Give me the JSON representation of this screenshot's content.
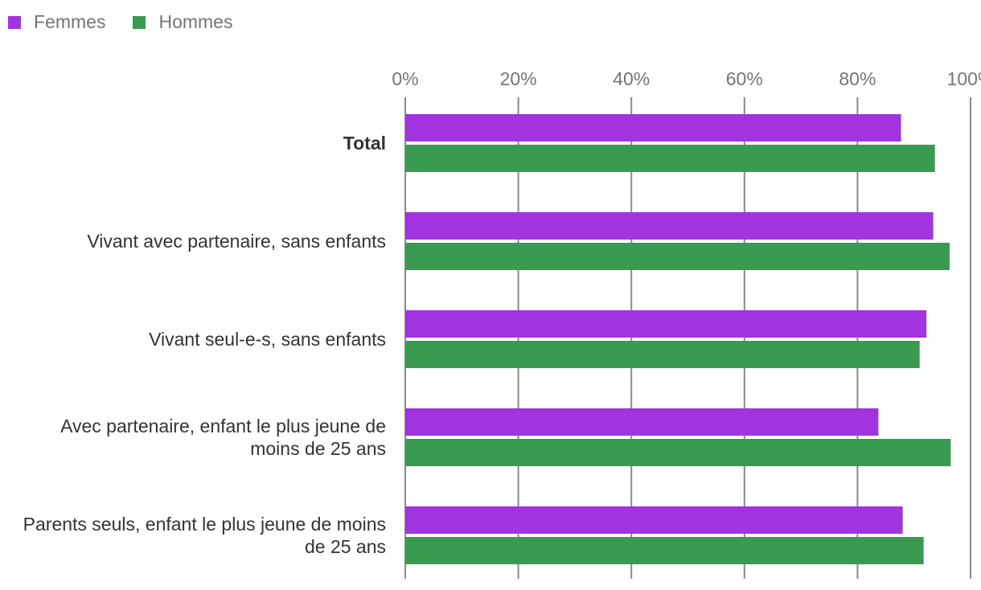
{
  "legend": {
    "items": [
      {
        "label": "Femmes",
        "color": "#A133E0"
      },
      {
        "label": "Hommes",
        "color": "#399B50"
      }
    ]
  },
  "chart_data": {
    "type": "bar",
    "orientation": "horizontal",
    "categories": [
      "Total",
      "Vivant avec partenaire, sans enfants",
      "Vivant seul-e-s, sans enfants",
      "Avec partenaire, enfant le plus jeune de moins de 25 ans",
      "Parents seuls, enfant le plus jeune de moins de 25 ans"
    ],
    "series": [
      {
        "name": "Femmes",
        "color": "#A133E0",
        "values": [
          87.7,
          93.4,
          92.2,
          83.7,
          88.0
        ]
      },
      {
        "name": "Hommes",
        "color": "#399B50",
        "values": [
          93.7,
          96.3,
          91.0,
          96.5,
          91.7
        ]
      }
    ],
    "xlim": [
      0,
      100
    ],
    "xticks": [
      0,
      20,
      40,
      60,
      80,
      100
    ],
    "tick_format": "{v}%",
    "grid": true,
    "legend_position": "top-left",
    "bold_categories": [
      "Total"
    ]
  }
}
